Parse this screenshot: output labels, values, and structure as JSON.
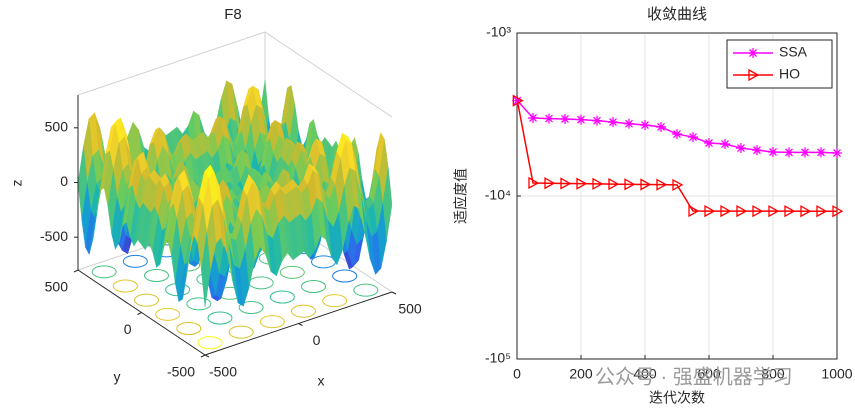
{
  "chart_data": [
    {
      "type": "surface3d",
      "title": "F8",
      "xlabel": "x",
      "ylabel": "y",
      "zlabel": "z",
      "xlim": [
        -500,
        500
      ],
      "ylim": [
        -500,
        500
      ],
      "zlim": [
        -800,
        800
      ],
      "xticks": [
        -500,
        0,
        500
      ],
      "yticks": [
        -500,
        0,
        500
      ],
      "zticks": [
        -500,
        0,
        500
      ]
    },
    {
      "type": "line",
      "title": "收敛曲线",
      "xlabel": "迭代次数",
      "ylabel": "适应度值",
      "x": [
        1,
        50,
        100,
        150,
        200,
        250,
        300,
        350,
        400,
        450,
        500,
        550,
        600,
        650,
        700,
        750,
        800,
        850,
        900,
        950,
        1000
      ],
      "series": [
        {
          "name": "SSA",
          "color": "#ff00ff",
          "marker": "asterisk",
          "values": [
            -2600,
            -3320,
            -3350,
            -3370,
            -3400,
            -3450,
            -3520,
            -3600,
            -3670,
            -3770,
            -4170,
            -4350,
            -4730,
            -4800,
            -5080,
            -5230,
            -5370,
            -5400,
            -5400,
            -5400,
            -5450
          ]
        },
        {
          "name": "HO",
          "color": "#ff0000",
          "marker": "triangle-right",
          "values": [
            -2600,
            -8320,
            -8350,
            -8380,
            -8400,
            -8420,
            -8450,
            -8480,
            -8500,
            -8520,
            -8550,
            -12360,
            -12380,
            -12380,
            -12380,
            -12390,
            -12390,
            -12390,
            -12400,
            -12400,
            -12400
          ]
        }
      ],
      "xlim": [
        0,
        1000
      ],
      "xticks": [
        0,
        200,
        400,
        600,
        800,
        1000
      ],
      "ylim": [
        -100000,
        -1000
      ],
      "yscale": "log",
      "yticks": [
        {
          "value": -100000,
          "label": "-10⁵"
        },
        {
          "value": -10000,
          "label": "-10⁴"
        },
        {
          "value": -1000,
          "label": "-10³"
        }
      ],
      "grid": true,
      "legend": "upper right"
    }
  ],
  "watermark": "公众号 · 强盛机器学习"
}
